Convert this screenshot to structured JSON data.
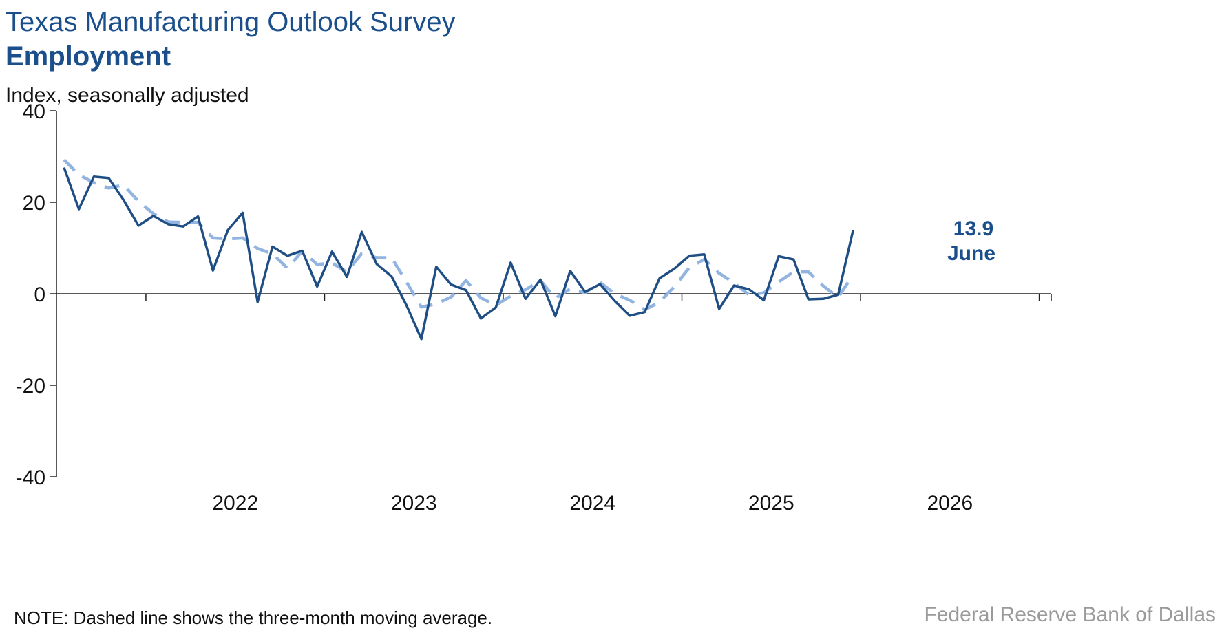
{
  "header": {
    "title": "Texas Manufacturing Outlook Survey",
    "subtitle": "Employment",
    "units": "Index, seasonally adjusted"
  },
  "footer": {
    "note": "NOTE: Dashed line shows the three-month moving average.",
    "source": "Federal Reserve Bank of Dallas"
  },
  "chart_data": {
    "type": "line",
    "title": "Employment",
    "ylabel": "Index, seasonally adjusted",
    "ylim": [
      -40,
      40
    ],
    "y_ticks": [
      40,
      20,
      0,
      -20,
      -40
    ],
    "x_tick_labels": [
      "2022",
      "2023",
      "2024",
      "2025",
      "2026"
    ],
    "x_start": "2021-07",
    "x_end": "2026-06",
    "grid": false,
    "colors": {
      "solid": "#1f4e85",
      "dashed": "#92b4e0",
      "annotation": "#1a4f8b"
    },
    "series": [
      {
        "style": "solid",
        "values": [
          27.6,
          18.5,
          25.6,
          25.3,
          20.5,
          14.9,
          17.0,
          15.2,
          14.7,
          16.9,
          5.1,
          13.9,
          17.7,
          -1.8,
          10.3,
          8.3,
          9.4,
          1.6,
          9.2,
          3.7,
          13.5,
          6.5,
          3.8,
          -2.5,
          -9.9,
          5.9,
          2.0,
          0.8,
          -5.4,
          -3.0,
          6.8,
          -1.1,
          3.1,
          -4.9,
          5.0,
          0.4,
          2.1,
          -1.6,
          -4.8,
          -4.0,
          3.4,
          5.5,
          8.3,
          8.6,
          -3.3,
          1.8,
          1.0,
          -1.4,
          8.2,
          7.5,
          -1.2,
          -1.1,
          -0.2,
          13.9
        ]
      },
      {
        "style": "dashed",
        "values": [
          29.3,
          26.0,
          24.3,
          23.1,
          23.8,
          20.2,
          17.5,
          15.7,
          15.6,
          15.6,
          12.2,
          12.0,
          12.2,
          9.9,
          8.7,
          5.6,
          9.3,
          6.4,
          6.7,
          4.8,
          8.8,
          7.9,
          7.9,
          2.6,
          -2.9,
          -2.2,
          -0.7,
          2.9,
          -0.9,
          -2.5,
          -0.5,
          0.9,
          2.9,
          -1.0,
          1.1,
          0.2,
          2.5,
          0.0,
          -1.4,
          -3.5,
          -1.8,
          1.6,
          5.7,
          7.5,
          4.5,
          2.4,
          -0.2,
          0.2,
          2.6,
          4.8,
          4.8,
          1.7,
          -0.8,
          4.2
        ]
      }
    ],
    "annotation": {
      "value": "13.9",
      "label": "June"
    }
  }
}
